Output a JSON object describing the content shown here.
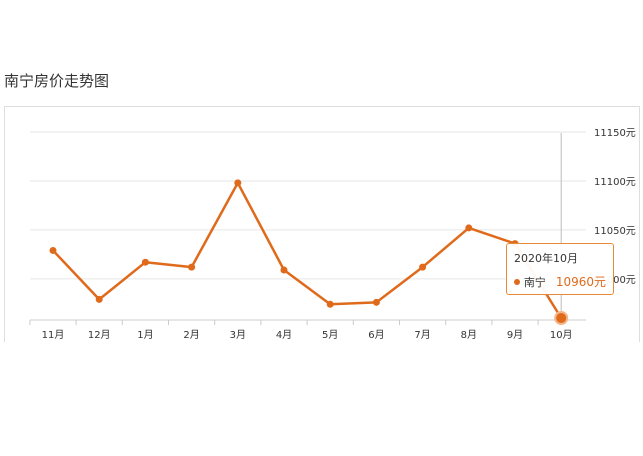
{
  "page": {
    "title": "南宁房价走势图"
  },
  "tooltip": {
    "date": "2020年10月",
    "series": "南宁",
    "value": "10960元"
  },
  "colors": {
    "line": "#e06a1b",
    "grid": "#e6e6e6",
    "axis": "#cccccc",
    "tooltip_border": "#e68a3a"
  },
  "chart_data": {
    "type": "line",
    "title": "南宁房价走势图",
    "categories": [
      "11月",
      "12月",
      "1月",
      "2月",
      "3月",
      "4月",
      "5月",
      "6月",
      "7月",
      "8月",
      "9月",
      "10月"
    ],
    "series": [
      {
        "name": "南宁",
        "values": [
          11029,
          10979,
          11017,
          11012,
          11098,
          11009,
          10974,
          10976,
          11012,
          11052,
          11036,
          10960
        ]
      }
    ],
    "ylim": [
      10960,
      11150
    ],
    "yticks": [
      11000,
      11050,
      11100,
      11150
    ],
    "ytick_labels": [
      "11000元",
      "11050元",
      "11100元",
      "11150元"
    ],
    "grid": true,
    "highlight_index": 11
  }
}
